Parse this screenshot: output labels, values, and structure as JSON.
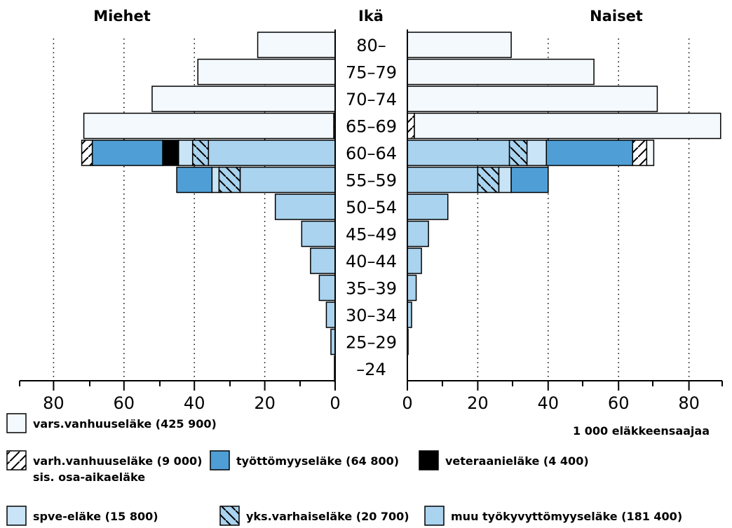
{
  "chart_data": {
    "type": "bar",
    "subtype": "population-pyramid-stacked",
    "left_title": "Miehet",
    "center_title": "Ikä",
    "right_title": "Naiset",
    "unit_label": "1 000 eläkkeensaajaa",
    "xlim": [
      0,
      90
    ],
    "ticks": [
      0,
      20,
      40,
      60,
      80
    ],
    "grid": "dotted vertical at 20, 40, 60, 80",
    "categories": [
      "80-",
      "75-79",
      "70-74",
      "65-69",
      "60-64",
      "55-59",
      "50-54",
      "45-49",
      "40-44",
      "35-39",
      "30-34",
      "25-29",
      "-24"
    ],
    "category_labels": [
      "80–",
      "75–79",
      "70–74",
      "65–69",
      "60–64",
      "55–59",
      "50–54",
      "45–49",
      "40–44",
      "35–39",
      "30–34",
      "25–29",
      "–24"
    ],
    "series": [
      {
        "key": "muu",
        "name": "muu työkyvyttömyyseläke (181 400)",
        "color": "#a9d3ee",
        "pattern": "solid",
        "men": [
          0,
          0,
          0,
          0,
          36,
          27,
          17,
          9.5,
          7,
          4.5,
          2.5,
          1.2,
          0.2
        ],
        "women": [
          0,
          0,
          0,
          0,
          29,
          20,
          11.5,
          6,
          4,
          2.5,
          1.2,
          0.2,
          0
        ]
      },
      {
        "key": "yks",
        "name": "yks.varhaiseläke (20 700)",
        "color": "#a9d3ee",
        "pattern": "diag-back",
        "men": [
          0,
          0,
          0,
          0,
          4.5,
          6,
          0,
          0,
          0,
          0,
          0,
          0,
          0
        ],
        "women": [
          0,
          0,
          0,
          0,
          5,
          6,
          0,
          0,
          0,
          0,
          0,
          0,
          0
        ]
      },
      {
        "key": "spve",
        "name": "spve-eläke (15 800)",
        "color": "#c8e4f6",
        "pattern": "solid",
        "men": [
          0,
          0,
          0,
          0,
          4,
          2,
          0,
          0,
          0,
          0,
          0,
          0,
          0
        ],
        "women": [
          0,
          0,
          0,
          0,
          5.5,
          3.5,
          0,
          0,
          0,
          0,
          0,
          0,
          0
        ]
      },
      {
        "key": "vet",
        "name": "veteraanieläke (4 400)",
        "color": "#000000",
        "pattern": "solid",
        "men": [
          0,
          0,
          0,
          0,
          4.5,
          0,
          0,
          0,
          0,
          0,
          0,
          0,
          0
        ],
        "women": [
          0,
          0,
          0,
          0,
          0,
          0,
          0,
          0,
          0,
          0,
          0,
          0,
          0
        ]
      },
      {
        "key": "tyott",
        "name": "työttömyyseläke (64 800)",
        "color": "#4f9fd6",
        "pattern": "solid",
        "men": [
          0,
          0,
          0,
          0,
          20,
          10,
          0,
          0,
          0,
          0,
          0,
          0,
          0
        ],
        "women": [
          0,
          0,
          0,
          0,
          24.5,
          10.5,
          0,
          0,
          0,
          0,
          0,
          0,
          0
        ]
      },
      {
        "key": "varh",
        "name": "varh.vanhuuseläke (9 000)",
        "sub_name": "sis. osa-aikaeläke",
        "color": "#ffffff",
        "pattern": "diag-fwd",
        "men": [
          0,
          0,
          0,
          0.4,
          3,
          0,
          0,
          0,
          0,
          0,
          0,
          0,
          0
        ],
        "women": [
          0,
          0,
          0,
          2,
          4,
          0,
          0,
          0,
          0,
          0,
          0,
          0,
          0
        ]
      },
      {
        "key": "vars",
        "name": "vars.vanhuuseläke (425 900)",
        "color": "#f3f9fd",
        "pattern": "solid",
        "men": [
          22,
          39,
          52,
          71,
          0,
          0,
          0,
          0,
          0,
          0,
          0,
          0,
          0
        ],
        "women": [
          29.5,
          53,
          71,
          87,
          2,
          0,
          0,
          0,
          0,
          0,
          0,
          0,
          0
        ]
      }
    ]
  }
}
